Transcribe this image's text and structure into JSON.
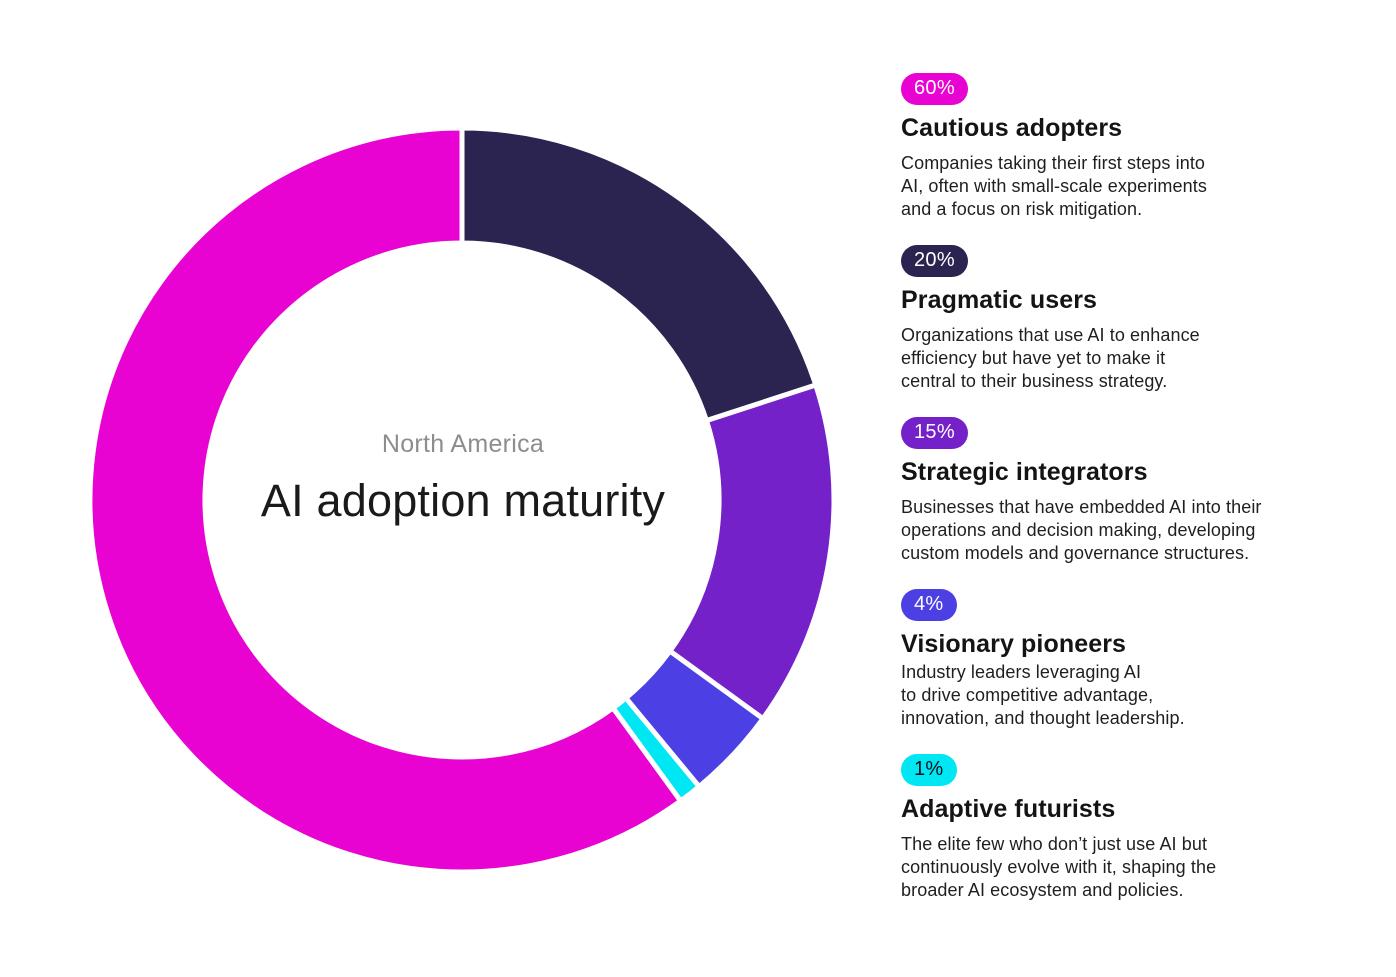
{
  "chart": {
    "region_label": "North America",
    "title": "AI adoption maturity"
  },
  "chart_data": {
    "type": "pie",
    "variant": "donut",
    "title": "AI adoption maturity",
    "subtitle": "North America",
    "legend_position": "right",
    "direction": "clockwise",
    "rotation_deg": 144,
    "inner_radius_ratio": 0.69,
    "gap_color": "#ffffff",
    "segments": [
      {
        "label": "Cautious adopters",
        "value": 60,
        "unit": "%",
        "badge": "60%",
        "color": "#e803d2",
        "badge_text_color": "#ffffff",
        "description_lines": [
          "Companies taking their first steps into",
          "AI, often with small-scale experiments",
          "and a focus on risk mitigation."
        ]
      },
      {
        "label": "Pragmatic users",
        "value": 20,
        "unit": "%",
        "badge": "20%",
        "color": "#2c2450",
        "badge_text_color": "#ffffff",
        "description_lines": [
          "Organizations that use AI to enhance",
          "efficiency but have yet to make it",
          "central to their business strategy."
        ]
      },
      {
        "label": "Strategic integrators",
        "value": 15,
        "unit": "%",
        "badge": "15%",
        "color": "#7521c9",
        "badge_text_color": "#ffffff",
        "description_lines": [
          "Businesses that have embedded AI into their",
          "operations and decision making, developing",
          "custom models and governance structures."
        ]
      },
      {
        "label": "Visionary pioneers",
        "value": 4,
        "unit": "%",
        "badge": "4%",
        "color": "#4c40e4",
        "badge_text_color": "#ffffff",
        "description_lines": [
          "Industry leaders leveraging AI",
          "to drive competitive advantage,",
          "innovation, and thought leadership."
        ]
      },
      {
        "label": "Adaptive futurists",
        "value": 1,
        "unit": "%",
        "badge": "1%",
        "color": "#00e7f4",
        "badge_text_color": "#0e0e1a",
        "description_lines": [
          "The elite few who don’t just use AI but",
          "continuously evolve with it, shaping the",
          "broader AI ecosystem and policies."
        ]
      }
    ]
  }
}
